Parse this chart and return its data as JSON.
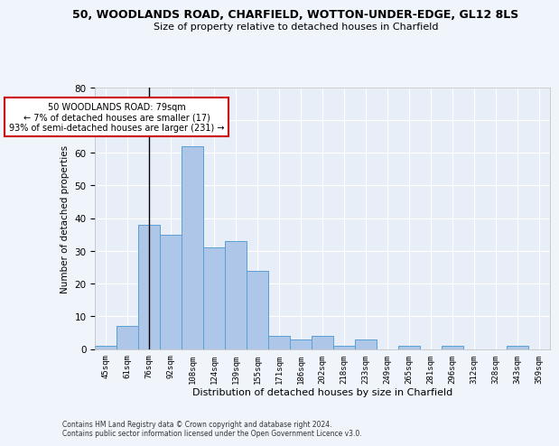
{
  "title": "50, WOODLANDS ROAD, CHARFIELD, WOTTON-UNDER-EDGE, GL12 8LS",
  "subtitle": "Size of property relative to detached houses in Charfield",
  "xlabel": "Distribution of detached houses by size in Charfield",
  "ylabel": "Number of detached properties",
  "categories": [
    "45sqm",
    "61sqm",
    "76sqm",
    "92sqm",
    "108sqm",
    "124sqm",
    "139sqm",
    "155sqm",
    "171sqm",
    "186sqm",
    "202sqm",
    "218sqm",
    "233sqm",
    "249sqm",
    "265sqm",
    "281sqm",
    "296sqm",
    "312sqm",
    "328sqm",
    "343sqm",
    "359sqm"
  ],
  "values": [
    1,
    7,
    38,
    35,
    62,
    31,
    33,
    24,
    4,
    3,
    4,
    1,
    3,
    0,
    1,
    0,
    1,
    0,
    0,
    1,
    0
  ],
  "bar_color": "#aec6e8",
  "bar_edge_color": "#5a9fd4",
  "vline_x_index": 2,
  "annotation_text": "50 WOODLANDS ROAD: 79sqm\n← 7% of detached houses are smaller (17)\n93% of semi-detached houses are larger (231) →",
  "annotation_box_color": "#ffffff",
  "annotation_box_edge_color": "#cc0000",
  "ylim": [
    0,
    80
  ],
  "yticks": [
    0,
    10,
    20,
    30,
    40,
    50,
    60,
    70,
    80
  ],
  "background_color": "#e8eef7",
  "fig_background_color": "#f0f4fb",
  "grid_color": "#ffffff",
  "footer_line1": "Contains HM Land Registry data © Crown copyright and database right 2024.",
  "footer_line2": "Contains public sector information licensed under the Open Government Licence v3.0."
}
